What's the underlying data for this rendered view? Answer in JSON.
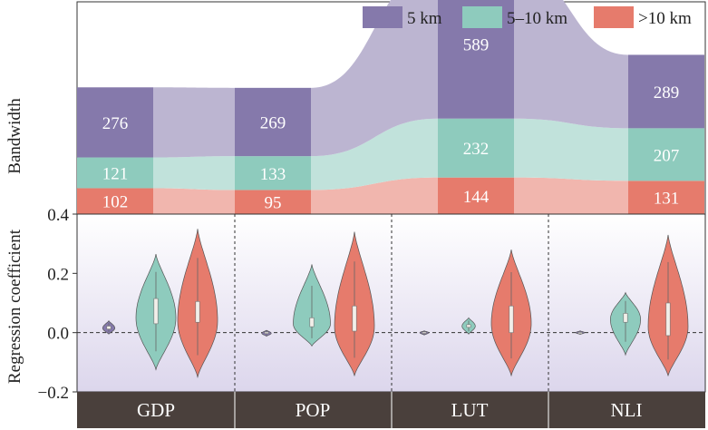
{
  "chart_data": [
    {
      "type": "stacked-bar-alluvial",
      "ylabel": "Bandwidth",
      "categories": [
        "GDP",
        "POP",
        "LUT",
        "NLI"
      ],
      "legend": [
        {
          "name": "5 km",
          "color": "#8579ab"
        },
        {
          "name": "5–10 km",
          "color": "#8ecbbd"
        },
        {
          "name": ">10 km",
          "color": "#e67b6c"
        }
      ],
      "legend_position": "top-right",
      "series": [
        {
          "name": ">10 km",
          "values": [
            102,
            95,
            144,
            131
          ]
        },
        {
          "name": "5–10 km",
          "values": [
            121,
            133,
            232,
            207
          ]
        },
        {
          "name": "5 km",
          "values": [
            276,
            269,
            589,
            289
          ]
        }
      ]
    },
    {
      "type": "violin",
      "ylabel": "Regression coefficient",
      "ylim": [
        -0.2,
        0.4
      ],
      "yticks": [
        "−0.2",
        "0.0",
        "0.2",
        "0.4"
      ],
      "reference_line": 0.0,
      "categories": [
        "GDP",
        "POP",
        "LUT",
        "NLI"
      ],
      "groups": [
        "5 km",
        "5–10 km",
        ">10 km"
      ],
      "colors": [
        "#8579ab",
        "#8ecbbd",
        "#e67b6c"
      ],
      "series": [
        {
          "category": "GDP",
          "violins": [
            {
              "min": -0.005,
              "max": 0.04,
              "q1": 0.012,
              "median": 0.017,
              "q3": 0.022,
              "mode": 0.015
            },
            {
              "min": -0.125,
              "max": 0.265,
              "q1": 0.03,
              "median": 0.07,
              "q3": 0.115,
              "mode": 0.05
            },
            {
              "min": -0.15,
              "max": 0.35,
              "q1": 0.035,
              "median": 0.08,
              "q3": 0.105,
              "mode": 0.04
            }
          ]
        },
        {
          "category": "POP",
          "violins": [
            {
              "min": -0.012,
              "max": 0.008,
              "q1": -0.003,
              "median": -0.001,
              "q3": 0.002,
              "mode": -0.002
            },
            {
              "min": -0.045,
              "max": 0.23,
              "q1": 0.02,
              "median": 0.035,
              "q3": 0.05,
              "mode": 0.03
            },
            {
              "min": -0.145,
              "max": 0.34,
              "q1": 0.005,
              "median": 0.045,
              "q3": 0.09,
              "mode": 0.02
            }
          ]
        },
        {
          "category": "LUT",
          "violins": [
            {
              "min": -0.008,
              "max": 0.006,
              "q1": -0.002,
              "median": 0.0,
              "q3": 0.002,
              "mode": 0.0
            },
            {
              "min": -0.005,
              "max": 0.05,
              "q1": 0.018,
              "median": 0.022,
              "q3": 0.027,
              "mode": 0.022
            },
            {
              "min": -0.145,
              "max": 0.28,
              "q1": 0.0,
              "median": 0.05,
              "q3": 0.09,
              "mode": 0.03
            }
          ]
        },
        {
          "category": "NLI",
          "violins": [
            {
              "min": -0.006,
              "max": 0.006,
              "q1": -0.001,
              "median": 0.0,
              "q3": 0.001,
              "mode": 0.0
            },
            {
              "min": -0.075,
              "max": 0.135,
              "q1": 0.035,
              "median": 0.05,
              "q3": 0.065,
              "mode": 0.045
            },
            {
              "min": -0.145,
              "max": 0.33,
              "q1": -0.01,
              "median": 0.035,
              "q3": 0.1,
              "mode": 0.02
            }
          ]
        }
      ]
    }
  ]
}
